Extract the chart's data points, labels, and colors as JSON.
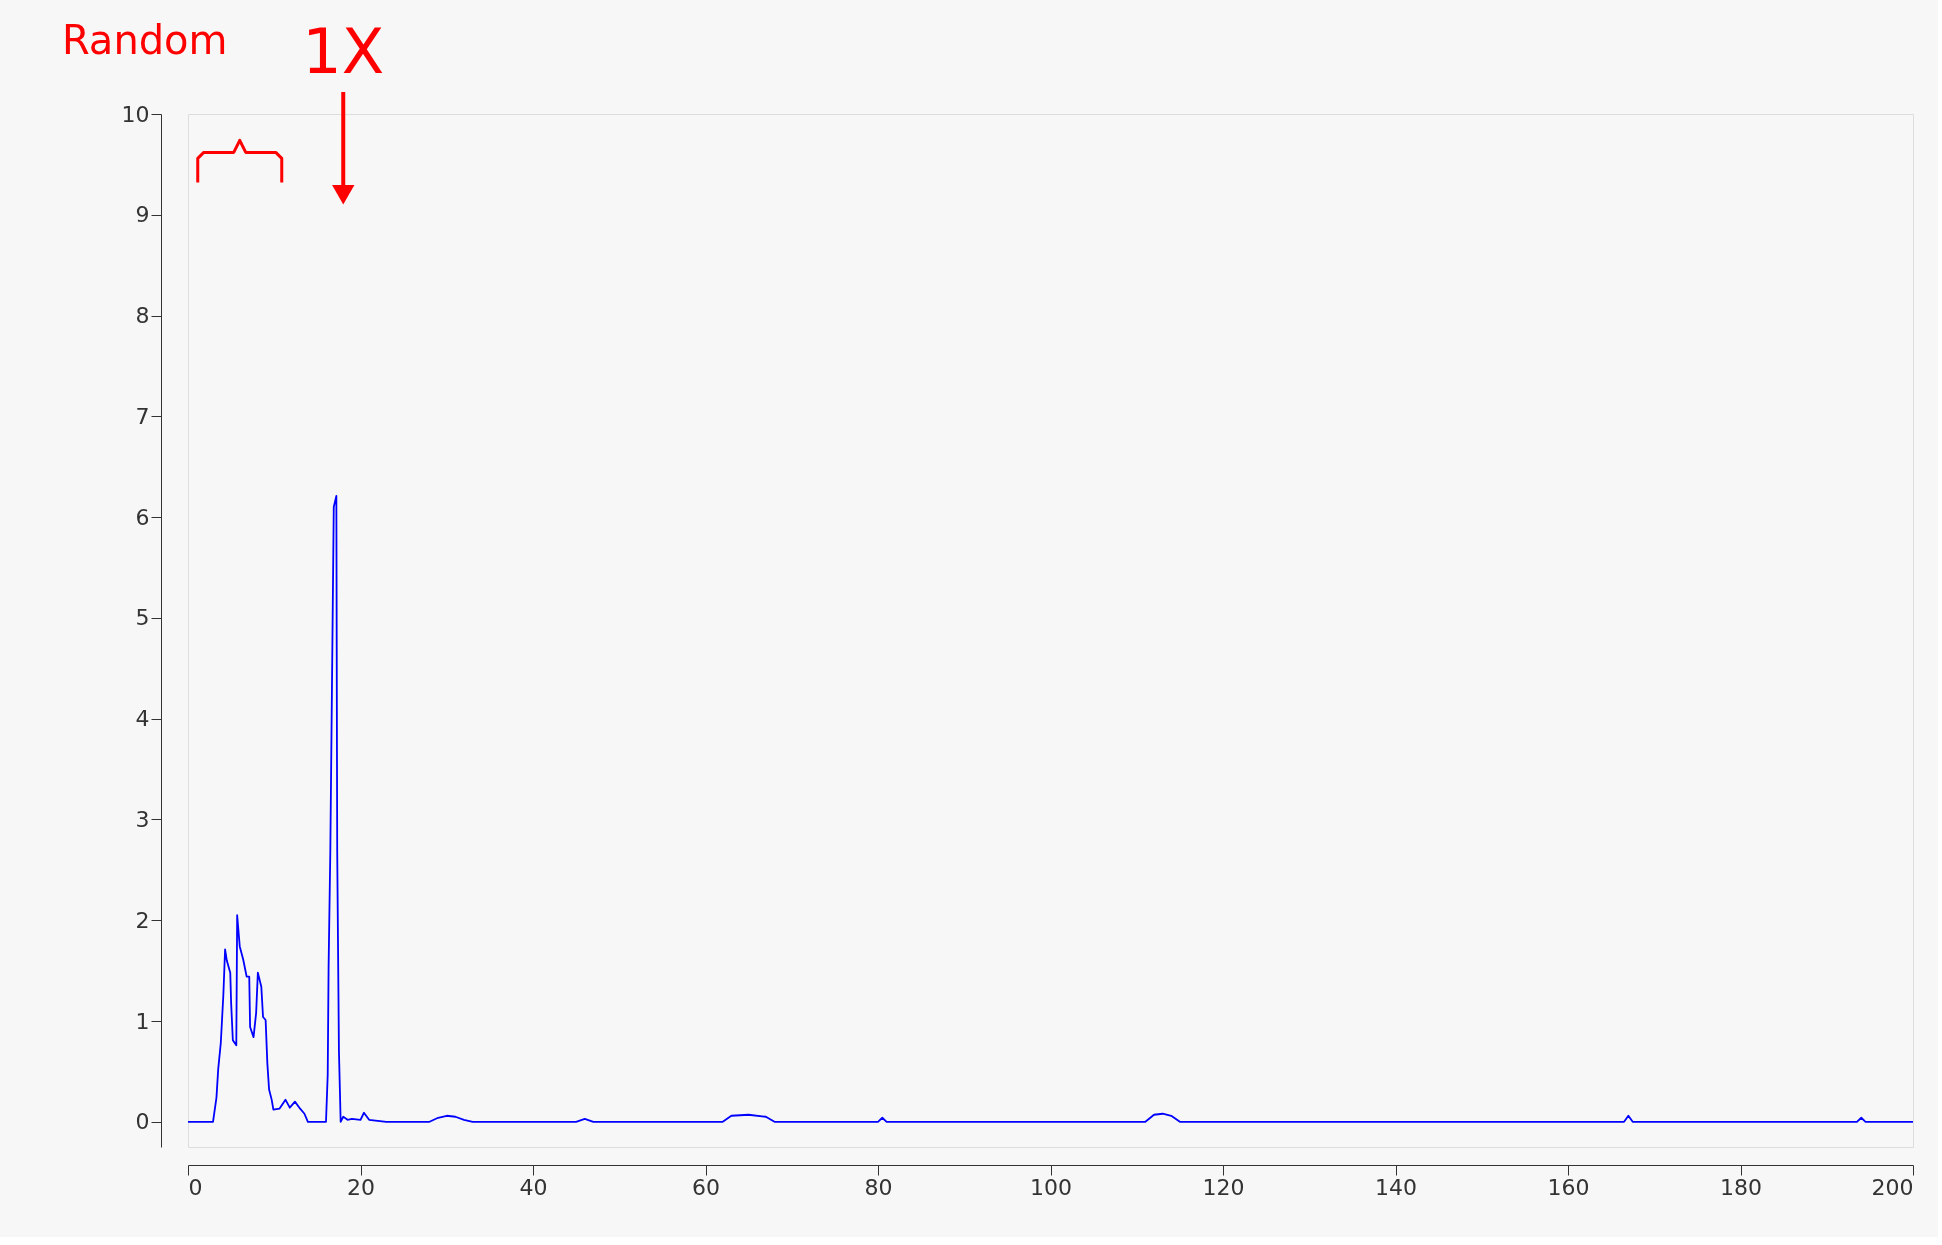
{
  "chart_data": {
    "type": "line",
    "x": [
      0,
      2.9,
      3.3,
      3.5,
      3.8,
      4.1,
      4.3,
      4.5,
      4.9,
      5.0,
      5.2,
      5.6,
      5.7,
      6.0,
      6.4,
      6.8,
      7.1,
      7.2,
      7.6,
      7.9,
      8.1,
      8.5,
      8.7,
      9.0,
      9.2,
      9.4,
      9.7,
      9.9,
      10.6,
      11.3,
      11.8,
      12.4,
      13.0,
      13.5,
      13.9,
      16.0,
      16.2,
      16.3,
      16.5,
      16.9,
      17.2,
      17.3,
      17.5,
      17.7,
      18.0,
      18.5,
      19.0,
      20.0,
      20.4,
      21.0,
      22.0,
      23.0,
      28.0,
      29.0,
      30.0,
      31.0,
      32.0,
      33.0,
      45.0,
      46.0,
      47.0,
      62.0,
      63.0,
      65.0,
      67.0,
      68.0,
      80.0,
      80.5,
      81.0,
      111.0,
      112.0,
      113.0,
      114.0,
      115.0,
      166.5,
      167.0,
      167.5,
      193.5,
      194.0,
      194.5,
      200.0
    ],
    "series": [
      {
        "color": "#0000ff",
        "values": [
          0,
          0,
          0.24,
          0.52,
          0.78,
          1.26,
          1.71,
          1.6,
          1.48,
          1.18,
          0.81,
          0.76,
          2.05,
          1.74,
          1.61,
          1.44,
          1.44,
          0.94,
          0.84,
          1.08,
          1.48,
          1.34,
          1.04,
          1.01,
          0.58,
          0.32,
          0.22,
          0.12,
          0.13,
          0.22,
          0.14,
          0.2,
          0.13,
          0.08,
          0,
          0,
          0.47,
          1.53,
          2.68,
          6.1,
          6.21,
          2.68,
          0.7,
          0,
          0.05,
          0.02,
          0.03,
          0.02,
          0.09,
          0.02,
          0.01,
          0,
          0,
          0.04,
          0.06,
          0.05,
          0.02,
          0,
          0,
          0.03,
          0,
          0,
          0.06,
          0.07,
          0.05,
          0,
          0,
          0.04,
          0,
          0,
          0.07,
          0.08,
          0.06,
          0,
          0,
          0.06,
          0,
          0,
          0.04,
          0,
          0
        ]
      }
    ],
    "xlim": [
      0,
      200
    ],
    "xticks": [
      0,
      20,
      40,
      60,
      80,
      100,
      120,
      140,
      160,
      180,
      200
    ],
    "ylim": [
      -0.25,
      10
    ],
    "yticks": [
      0,
      1,
      2,
      3,
      4,
      5,
      6,
      7,
      8,
      9,
      10
    ],
    "grid": false,
    "annotations": [
      "Random",
      "1X"
    ]
  }
}
